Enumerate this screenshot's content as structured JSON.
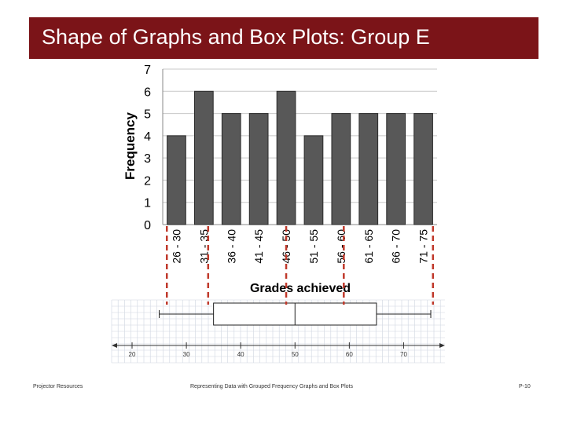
{
  "slide": {
    "title": "Shape of Graphs and Box Plots: Group E"
  },
  "footer": {
    "left": "Projector Resources",
    "center": "Representing Data with Grouped Frequency Graphs and Box Plots",
    "right": "P-10"
  },
  "colors": {
    "title_bar": "#7b1418",
    "bar_fill": "#585858",
    "dashed_line": "#c0392b"
  },
  "chart_data": {
    "type": "bar",
    "categories": [
      "26 - 30",
      "31 - 35",
      "36 - 40",
      "41 - 45",
      "46 - 50",
      "51 - 55",
      "56 - 60",
      "61 - 65",
      "66 - 70",
      "71 - 75"
    ],
    "values": [
      4,
      6,
      5,
      5,
      6,
      4,
      5,
      5,
      5,
      5
    ],
    "xlabel": "Grades achieved",
    "ylabel": "Frequency",
    "ylim": [
      0,
      7
    ],
    "yticks": [
      "0",
      "1",
      "2",
      "3",
      "4",
      "5",
      "6",
      "7"
    ],
    "grid": true,
    "boxplot": {
      "min": 25,
      "q1": 35,
      "median": 50,
      "q3": 65,
      "max": 75,
      "axis_range": [
        20,
        75
      ],
      "axis_ticks": [
        "20",
        "30",
        "40",
        "50",
        "60",
        "70"
      ]
    }
  }
}
